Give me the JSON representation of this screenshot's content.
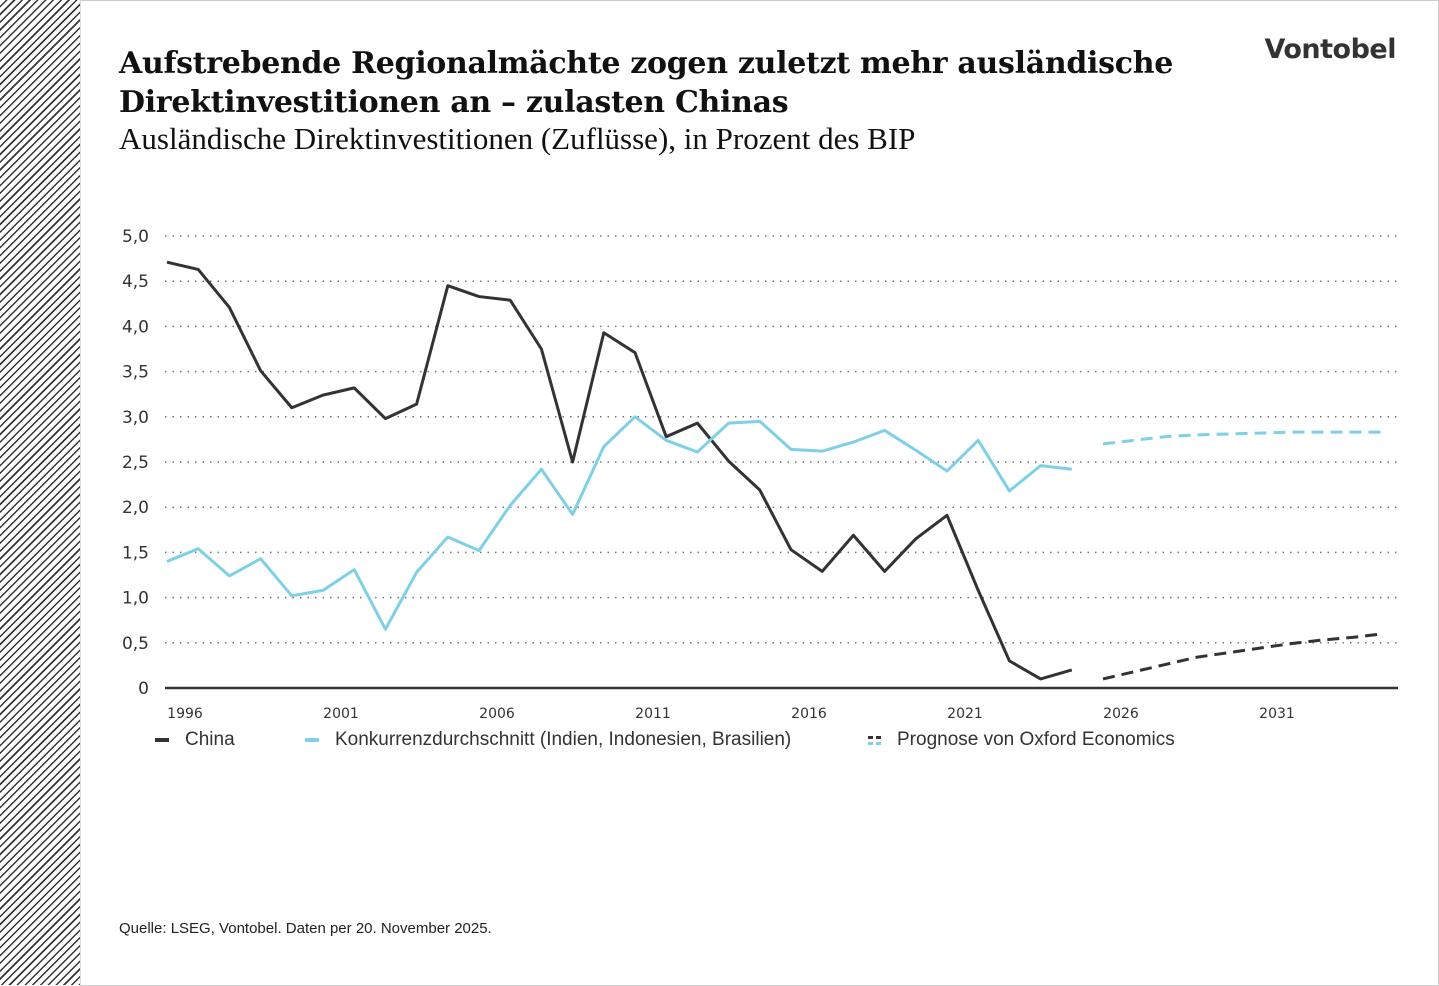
{
  "header": {
    "title": "Aufstrebende Regionalmächte zogen zuletzt mehr ausländische Direktinvestitionen an – zulasten Chinas",
    "subtitle": "Ausländische Direktinvestitionen (Zuflüsse), in Prozent des BIP",
    "logo": "Vontobel"
  },
  "footer": {
    "source": "Quelle: LSEG, Vontobel. Daten per 20. November 2025."
  },
  "colors": {
    "china": "#333333",
    "competitors": "#7fd0e6"
  },
  "chart_data": {
    "type": "line",
    "title": "Aufstrebende Regionalmächte zogen zuletzt mehr ausländische Direktinvestitionen an – zulasten Chinas",
    "subtitle": "Ausländische Direktinvestitionen (Zuflüsse), in Prozent des BIP",
    "xlabel": "",
    "ylabel": "",
    "ylim": [
      0,
      5
    ],
    "xlim": [
      1996,
      2035
    ],
    "yticks": [
      "0",
      "0,5",
      "1,0",
      "1,5",
      "2,0",
      "2,5",
      "3,0",
      "3,5",
      "4,0",
      "4,5",
      "5,0"
    ],
    "xticks": [
      "1996",
      "2001",
      "2006",
      "2011",
      "2016",
      "2021",
      "2026",
      "2031"
    ],
    "grid": "horizontal dotted",
    "legend_position": "bottom",
    "series": [
      {
        "name": "China",
        "style": "solid",
        "color": "#333333",
        "x": [
          1996,
          1997,
          1998,
          1999,
          2000,
          2001,
          2002,
          2003,
          2004,
          2005,
          2006,
          2007,
          2008,
          2009,
          2010,
          2011,
          2012,
          2013,
          2014,
          2015,
          2016,
          2017,
          2018,
          2019,
          2020,
          2021,
          2022,
          2023,
          2024,
          2025
        ],
        "values": [
          4.71,
          4.63,
          4.21,
          3.51,
          3.1,
          3.24,
          3.32,
          2.98,
          3.14,
          4.45,
          4.33,
          4.29,
          3.75,
          2.5,
          3.93,
          3.71,
          2.78,
          2.93,
          2.51,
          2.19,
          1.53,
          1.29,
          1.69,
          1.29,
          1.65,
          1.91,
          1.08,
          0.3,
          0.1,
          0.2
        ]
      },
      {
        "name": "Konkurrenzdurchschnitt (Indien, Indonesien, Brasilien)",
        "style": "solid",
        "color": "#7fd0e6",
        "x": [
          1996,
          1997,
          1998,
          1999,
          2000,
          2001,
          2002,
          2003,
          2004,
          2005,
          2006,
          2007,
          2008,
          2009,
          2010,
          2011,
          2012,
          2013,
          2014,
          2015,
          2016,
          2017,
          2018,
          2019,
          2020,
          2021,
          2022,
          2023,
          2024,
          2025
        ],
        "values": [
          1.4,
          1.54,
          1.24,
          1.43,
          1.02,
          1.08,
          1.31,
          0.65,
          1.28,
          1.67,
          1.52,
          2.02,
          2.42,
          1.92,
          2.67,
          3.0,
          2.74,
          2.61,
          2.93,
          2.95,
          2.64,
          2.62,
          2.72,
          2.85,
          2.63,
          2.4,
          2.74,
          2.18,
          2.46,
          2.42
        ]
      },
      {
        "name": "Prognose von Oxford Economics",
        "style": "dashed",
        "color": "#333333",
        "x": [
          2026,
          2027,
          2028,
          2029,
          2030,
          2031,
          2032,
          2033,
          2034,
          2035
        ],
        "values": [
          0.1,
          0.18,
          0.26,
          0.34,
          0.39,
          0.44,
          0.49,
          0.53,
          0.56,
          0.6
        ]
      },
      {
        "name": "Prognose von Oxford Economics",
        "style": "dashed",
        "color": "#7fd0e6",
        "x": [
          2026,
          2027,
          2028,
          2029,
          2030,
          2031,
          2032,
          2033,
          2034,
          2035
        ],
        "values": [
          2.7,
          2.74,
          2.78,
          2.8,
          2.81,
          2.82,
          2.83,
          2.83,
          2.83,
          2.83
        ]
      }
    ],
    "legend": [
      "China",
      "Konkurrenzdurchschnitt (Indien, Indonesien, Brasilien)",
      "Prognose von Oxford Economics"
    ]
  }
}
